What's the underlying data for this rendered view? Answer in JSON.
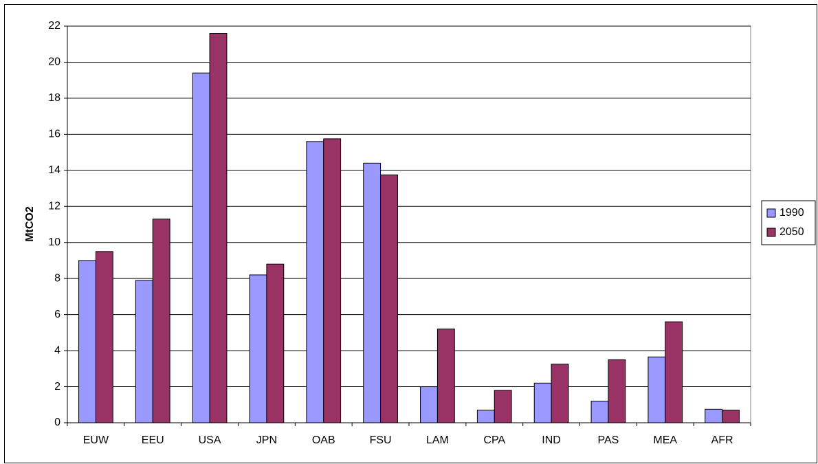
{
  "chart_data": {
    "type": "bar",
    "y_label": "MtCO2",
    "categories": [
      "EUW",
      "EEU",
      "USA",
      "JPN",
      "OAB",
      "FSU",
      "LAM",
      "CPA",
      "IND",
      "PAS",
      "MEA",
      "AFR"
    ],
    "series": [
      {
        "name": "1990",
        "color": "#9999ff",
        "values": [
          9.0,
          7.9,
          19.4,
          8.2,
          15.6,
          14.4,
          2.0,
          0.7,
          2.2,
          1.2,
          3.65,
          0.75
        ]
      },
      {
        "name": "2050",
        "color": "#993366",
        "values": [
          9.5,
          11.3,
          21.6,
          8.8,
          15.75,
          13.75,
          5.2,
          1.8,
          3.25,
          3.5,
          5.6,
          0.7
        ]
      }
    ],
    "ylim": [
      0,
      22
    ],
    "yticks": [
      0,
      2,
      4,
      6,
      8,
      10,
      12,
      14,
      16,
      18,
      20,
      22
    ],
    "grid": true,
    "legend": "right"
  }
}
